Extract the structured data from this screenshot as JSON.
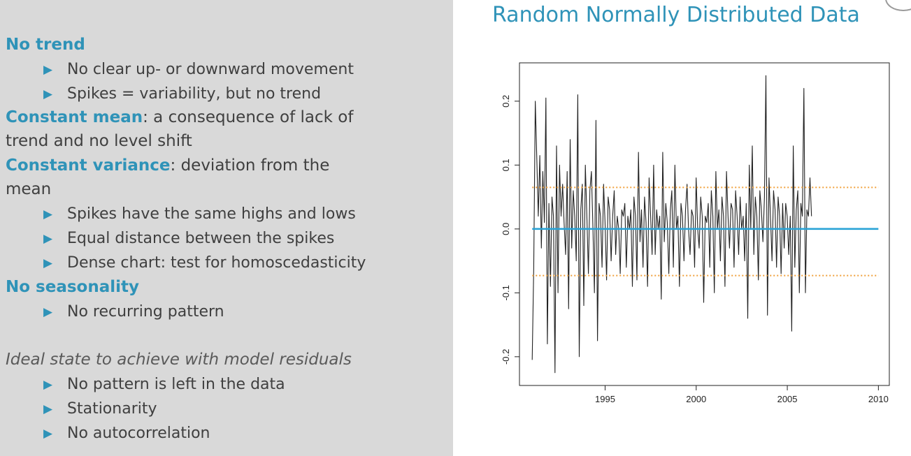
{
  "slide": {
    "title": "Random Normally Distributed Data",
    "sections": {
      "no_trend": {
        "heading": "No trend"
      },
      "constant_mean": {
        "heading": "Constant mean",
        "line1_rest": ": a consequence of lack of",
        "line2": "trend and no level shift"
      },
      "constant_variance": {
        "heading": "Constant variance",
        "line1_rest": ": deviation from the",
        "line2": "mean"
      },
      "no_seasonality": {
        "heading": "No seasonality"
      },
      "ideal": {
        "text": "Ideal state to achieve with model residuals"
      }
    },
    "bullets": [
      "No clear up- or downward movement",
      "Spikes = variability, but no trend",
      "Spikes have the same highs and lows",
      "Equal distance between the spikes",
      "Dense chart: test for homoscedasticity",
      "No recurring pattern",
      "No pattern is left in the data",
      "Stationarity",
      "No autocorrelation"
    ]
  },
  "chart_data": {
    "type": "line",
    "title": "Random Normally Distributed Data",
    "xlabel": "",
    "ylabel": "",
    "xlim": [
      1990.3,
      2010.6
    ],
    "ylim": [
      -0.245,
      0.26
    ],
    "x_ticks": [
      "1995",
      "2000",
      "2005",
      "2010"
    ],
    "y_ticks": [
      "-0.2",
      "-0.1",
      "0.0",
      "0.1",
      "0.2"
    ],
    "grid": false,
    "series": [
      {
        "x_start": 1991.0,
        "x_step": 0.0833,
        "color": "#222222",
        "values": [
          -0.205,
          -0.06,
          0.2,
          0.11,
          0.02,
          0.115,
          -0.03,
          0.09,
          0.01,
          0.205,
          -0.18,
          0.04,
          -0.09,
          0.05,
          0.02,
          -0.225,
          0.13,
          -0.1,
          0.1,
          0.02,
          0.07,
          0.01,
          -0.04,
          0.09,
          -0.125,
          0.14,
          -0.03,
          0.06,
          0.02,
          -0.05,
          0.21,
          -0.2,
          0.03,
          0.07,
          -0.12,
          0.1,
          0.02,
          -0.07,
          0.06,
          0.09,
          0.0,
          -0.1,
          0.17,
          -0.175,
          0.04,
          0.02,
          -0.06,
          0.07,
          0.01,
          -0.08,
          0.05,
          0.03,
          -0.05,
          0.02,
          0.06,
          -0.04,
          0.02,
          0.0,
          -0.07,
          0.03,
          0.02,
          0.04,
          -0.06,
          0.02,
          0.0,
          0.03,
          -0.09,
          0.05,
          0.02,
          -0.08,
          0.12,
          -0.02,
          0.03,
          -0.06,
          0.05,
          0.01,
          -0.09,
          0.08,
          0.02,
          -0.04,
          0.1,
          -0.04,
          0.03,
          0.0,
          0.02,
          -0.11,
          0.12,
          -0.02,
          0.04,
          0.01,
          -0.07,
          0.03,
          0.06,
          -0.06,
          0.1,
          0.0,
          0.02,
          -0.09,
          0.04,
          0.02,
          -0.05,
          0.03,
          0.07,
          0.0,
          -0.04,
          0.03,
          0.02,
          -0.06,
          0.08,
          0.0,
          -0.03,
          0.05,
          0.02,
          -0.115,
          0.02,
          0.01,
          0.04,
          -0.06,
          0.06,
          0.02,
          -0.1,
          0.09,
          0.0,
          0.03,
          -0.05,
          0.05,
          0.02,
          -0.09,
          0.09,
          0.02,
          -0.03,
          0.04,
          0.03,
          -0.06,
          0.06,
          0.02,
          -0.04,
          0.05,
          0.0,
          0.02,
          -0.05,
          0.04,
          -0.14,
          0.1,
          0.0,
          0.13,
          -0.04,
          0.05,
          0.02,
          -0.08,
          0.06,
          0.03,
          -0.02,
          0.05,
          0.24,
          -0.135,
          0.08,
          0.02,
          -0.05,
          0.06,
          0.03,
          -0.06,
          0.05,
          0.02,
          -0.07,
          0.04,
          -0.03,
          0.04,
          0.02,
          -0.04,
          0.02,
          -0.16,
          0.13,
          -0.06,
          0.03,
          0.06,
          -0.1,
          0.04,
          0.02,
          0.22,
          -0.1,
          0.03,
          0.02,
          0.08,
          0.02
        ]
      },
      {
        "name": "",
        "type": "hline",
        "value": 0.0,
        "color": "#2aa3d6",
        "style": "solid"
      },
      {
        "name": "",
        "type": "hline",
        "value": 0.065,
        "color": "#f0a03a",
        "style": "dotted"
      },
      {
        "name": "",
        "type": "hline",
        "value": -0.073,
        "color": "#f0a03a",
        "style": "dotted"
      }
    ]
  }
}
